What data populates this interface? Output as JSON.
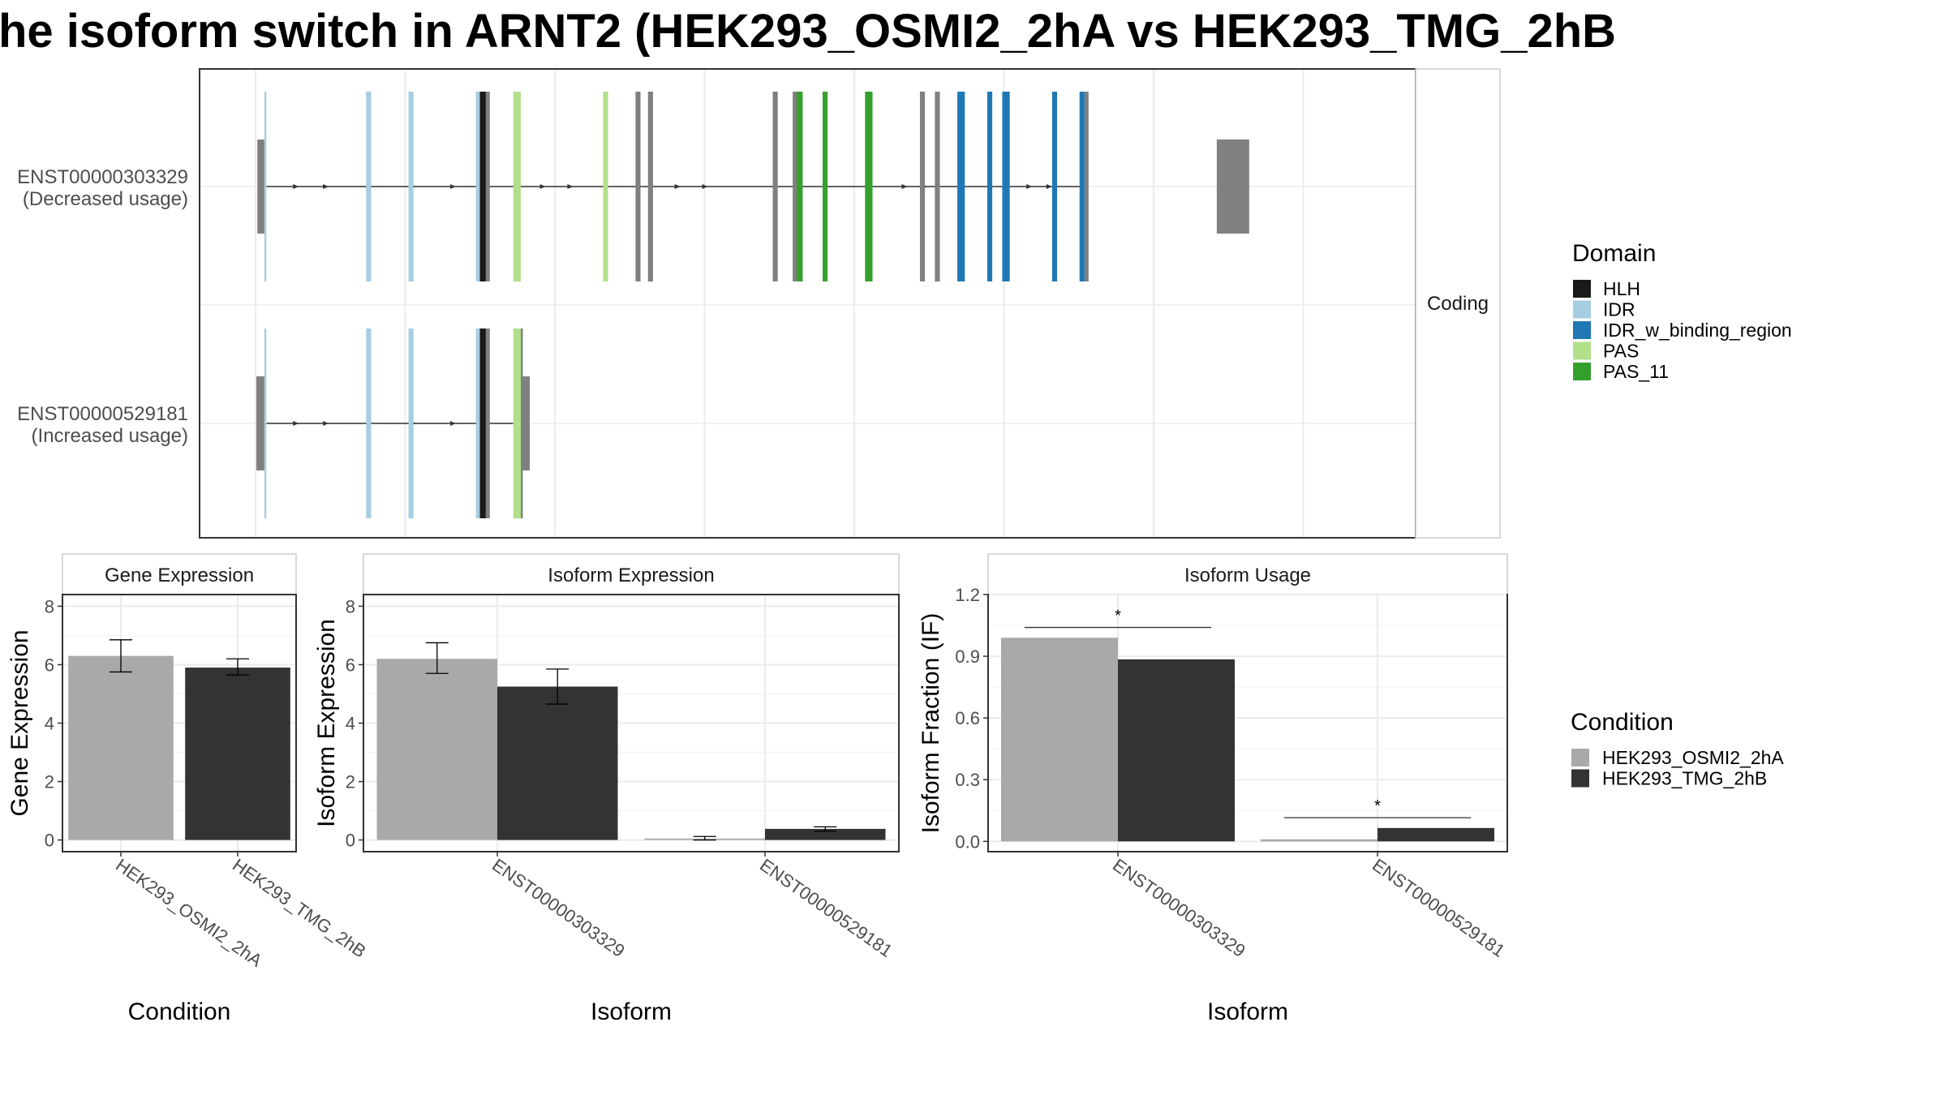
{
  "title": "he isoform switch in ARNT2 (HEK293_OSMI2_2hA vs HEK293_TMG_2hB",
  "colors": {
    "HLH": "#1a1a1a",
    "IDR": "#a6cee3",
    "IDR_w_binding_region": "#1f78b4",
    "PAS": "#b2df8a",
    "PAS_11": "#33a02c",
    "exon": "#808080",
    "cond_a": "#a9a9a9",
    "cond_b": "#333333"
  },
  "structure": {
    "strip_label": "Coding",
    "transcripts": [
      {
        "label": "ENST00000303329\n(Decreased usage)",
        "label_line1": "ENST00000303329",
        "label_line2": "(Decreased usage)",
        "utr5": [
          0.2,
          1.6
        ],
        "utr3": [
          192.5,
          199.0
        ],
        "cds": [
          {
            "start": 1.6,
            "end": 2.0,
            "domain": "IDR"
          },
          {
            "start": 22.0,
            "end": 23.0,
            "domain": "IDR"
          },
          {
            "start": 30.5,
            "end": 31.5,
            "domain": "IDR"
          },
          {
            "start": 44.0,
            "end": 44.8,
            "domain": "IDR"
          },
          {
            "start": 44.8,
            "end": 46.0,
            "domain": "HLH"
          },
          {
            "start": 46.0,
            "end": 46.8,
            "domain": "exon"
          },
          {
            "start": 51.5,
            "end": 53.0,
            "domain": "PAS"
          },
          {
            "start": 69.5,
            "end": 70.5,
            "domain": "PAS"
          },
          {
            "start": 76.0,
            "end": 77.0,
            "domain": "exon"
          },
          {
            "start": 78.5,
            "end": 79.5,
            "domain": "exon"
          },
          {
            "start": 103.5,
            "end": 104.5,
            "domain": "exon"
          },
          {
            "start": 107.5,
            "end": 108.3,
            "domain": "exon"
          },
          {
            "start": 108.3,
            "end": 109.5,
            "domain": "PAS_11"
          },
          {
            "start": 113.5,
            "end": 114.5,
            "domain": "PAS_11"
          },
          {
            "start": 122.0,
            "end": 123.5,
            "domain": "PAS_11"
          },
          {
            "start": 133.0,
            "end": 134.0,
            "domain": "exon"
          },
          {
            "start": 136.0,
            "end": 137.0,
            "domain": "exon"
          },
          {
            "start": 140.5,
            "end": 142.0,
            "domain": "IDR_w_binding_region"
          },
          {
            "start": 146.5,
            "end": 147.5,
            "domain": "IDR_w_binding_region"
          },
          {
            "start": 149.5,
            "end": 151.0,
            "domain": "IDR_w_binding_region"
          },
          {
            "start": 159.5,
            "end": 160.5,
            "domain": "IDR_w_binding_region"
          },
          {
            "start": 165.0,
            "end": 166.0,
            "domain": "IDR_w_binding_region"
          },
          {
            "start": 166.0,
            "end": 166.8,
            "domain": "exon"
          }
        ],
        "arrows": [
          8.0,
          14.0,
          31.5,
          39.5,
          57.5,
          63.0,
          84.5,
          90.0,
          130.0,
          134.0,
          155.0,
          159.0
        ],
        "line": [
          2.0,
          166.0
        ]
      },
      {
        "label": "ENST00000529181\n(Increased usage)",
        "label_line1": "ENST00000529181",
        "label_line2": "(Increased usage)",
        "utr5": [
          0.0,
          1.6
        ],
        "utr3": [
          53.0,
          54.8
        ],
        "cds": [
          {
            "start": 1.6,
            "end": 2.0,
            "domain": "IDR"
          },
          {
            "start": 22.0,
            "end": 23.0,
            "domain": "IDR"
          },
          {
            "start": 30.5,
            "end": 31.5,
            "domain": "IDR"
          },
          {
            "start": 44.0,
            "end": 44.8,
            "domain": "IDR"
          },
          {
            "start": 44.8,
            "end": 46.0,
            "domain": "HLH"
          },
          {
            "start": 46.0,
            "end": 46.8,
            "domain": "exon"
          },
          {
            "start": 51.5,
            "end": 53.0,
            "domain": "PAS"
          },
          {
            "start": 53.0,
            "end": 53.4,
            "domain": "exon"
          }
        ],
        "arrows": [
          8.0,
          14.0,
          31.5,
          39.5
        ],
        "line": [
          2.0,
          51.5
        ]
      }
    ]
  },
  "legend_domain": {
    "title": "Domain",
    "items": [
      {
        "name": "HLH",
        "color_key": "HLH"
      },
      {
        "name": "IDR",
        "color_key": "IDR"
      },
      {
        "name": "IDR_w_binding_region",
        "color_key": "IDR_w_binding_region"
      },
      {
        "name": "PAS",
        "color_key": "PAS"
      },
      {
        "name": "PAS_11",
        "color_key": "PAS_11"
      }
    ]
  },
  "legend_condition": {
    "title": "Condition",
    "items": [
      {
        "name": "HEK293_OSMI2_2hA",
        "color_key": "cond_a"
      },
      {
        "name": "HEK293_TMG_2hB",
        "color_key": "cond_b"
      }
    ]
  },
  "chart_data": [
    {
      "type": "bar",
      "title": "Gene Expression",
      "xlabel": "Condition",
      "ylabel": "Gene Expression",
      "categories": [
        "HEK293_OSMI2_2hA",
        "HEK293_TMG_2hB"
      ],
      "values": [
        6.3,
        5.9
      ],
      "error": [
        [
          5.75,
          6.85
        ],
        [
          5.65,
          6.2
        ]
      ],
      "yticks": [
        0,
        2,
        4,
        6,
        8
      ],
      "ylim": [
        -0.4,
        8.4
      ]
    },
    {
      "type": "bar",
      "title": "Isoform Expression",
      "xlabel": "Isoform",
      "ylabel": "Isoform Expression",
      "categories": [
        "ENST00000303329",
        "ENST00000529181"
      ],
      "series": [
        {
          "name": "HEK293_OSMI2_2hA",
          "values": [
            6.2,
            0.05
          ],
          "error": [
            [
              5.7,
              6.75
            ],
            [
              0.0,
              0.12
            ]
          ]
        },
        {
          "name": "HEK293_TMG_2hB",
          "values": [
            5.25,
            0.38
          ],
          "error": [
            [
              4.65,
              5.85
            ],
            [
              0.3,
              0.45
            ]
          ]
        }
      ],
      "yticks": [
        0,
        2,
        4,
        6,
        8
      ],
      "ylim": [
        -0.4,
        8.4
      ]
    },
    {
      "type": "bar",
      "title": "Isoform Usage",
      "xlabel": "Isoform",
      "ylabel": "Isoform Fraction (IF)",
      "categories": [
        "ENST00000303329",
        "ENST00000529181"
      ],
      "series": [
        {
          "name": "HEK293_OSMI2_2hA",
          "values": [
            0.99,
            0.01
          ]
        },
        {
          "name": "HEK293_TMG_2hB",
          "values": [
            0.885,
            0.065
          ]
        }
      ],
      "significance": [
        {
          "category": "ENST00000303329",
          "label": "*",
          "y": 1.04
        },
        {
          "category": "ENST00000529181",
          "label": "*",
          "y": 0.115
        }
      ],
      "yticks": [
        0.0,
        0.3,
        0.6,
        0.9,
        1.2
      ],
      "ytick_labels": [
        "0.0",
        "0.3",
        "0.6",
        "0.9",
        "1.2"
      ],
      "ylim": [
        -0.05,
        1.2
      ]
    }
  ]
}
